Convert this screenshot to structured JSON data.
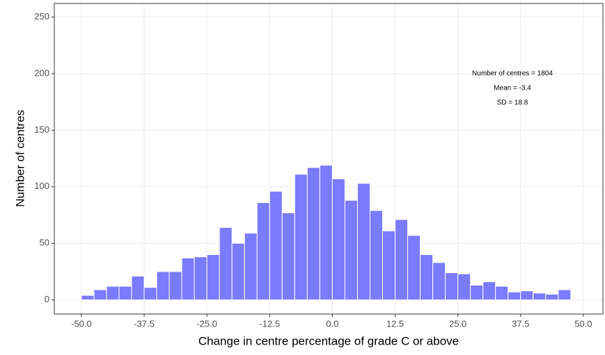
{
  "chart_data": {
    "type": "histogram",
    "x_label": "Change in centre percentage of grade C or above",
    "y_label": "Number of centres",
    "annotations": [
      "Number of centres = 1804",
      "Mean = -3.4",
      "SD = 18.8"
    ],
    "bins": [
      -50,
      -47.5,
      -45,
      -42.5,
      -40,
      -37.5,
      -35,
      -32.5,
      -30,
      -27.5,
      -25,
      -22.5,
      -20,
      -17.5,
      -15,
      -12.5,
      -10,
      -7.5,
      -5,
      -2.5,
      0,
      2.5,
      5,
      7.5,
      10,
      12.5,
      15,
      17.5,
      20,
      22.5,
      25,
      27.5,
      30,
      32.5,
      35,
      37.5,
      40,
      42.5,
      45,
      47.5
    ],
    "values": [
      4,
      9,
      12,
      12,
      21,
      11,
      25,
      25,
      37,
      38,
      40,
      64,
      50,
      59,
      86,
      96,
      77,
      111,
      117,
      119,
      107,
      88,
      103,
      79,
      61,
      71,
      57,
      40,
      33,
      24,
      23,
      13,
      16,
      12,
      7,
      8,
      6,
      5,
      9
    ],
    "color": "#7b7bff",
    "xlim": [
      -55.4,
      53.9
    ],
    "ylim": [
      -12.5,
      262
    ],
    "xticks": [
      {
        "value": -50,
        "label": "-50.0"
      },
      {
        "value": -37.5,
        "label": "-37.5"
      },
      {
        "value": -25,
        "label": "-25.0"
      },
      {
        "value": -12.5,
        "label": "-12.5"
      },
      {
        "value": 0,
        "label": "0.0"
      },
      {
        "value": 12.5,
        "label": "12.5"
      },
      {
        "value": 25,
        "label": "25.0"
      },
      {
        "value": 37.5,
        "label": "37.5"
      },
      {
        "value": 50,
        "label": "50.0"
      }
    ],
    "yticks": [
      0,
      50,
      100,
      150,
      200,
      250
    ],
    "grid": true
  }
}
